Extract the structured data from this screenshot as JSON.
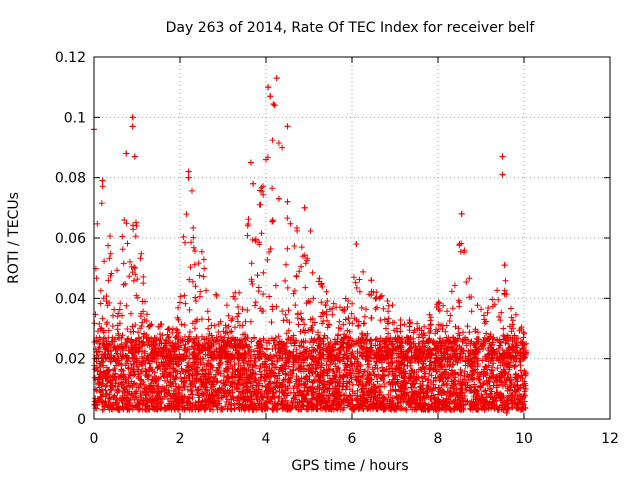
{
  "chart_data": {
    "type": "scatter",
    "title": "Day 263 of 2014, Rate Of TEC Index for receiver belf",
    "xlabel": "GPS time / hours",
    "ylabel": "ROTI / TECUs",
    "xlim": [
      0,
      12
    ],
    "ylim": [
      0,
      0.12
    ],
    "xticks": [
      0,
      2,
      4,
      6,
      8,
      10,
      12
    ],
    "yticks": [
      0,
      0.02,
      0.04,
      0.06,
      0.08,
      0.1,
      0.12
    ],
    "xtick_labels": [
      "0",
      "2",
      "4",
      "6",
      "8",
      "10",
      "12"
    ],
    "ytick_labels": [
      "0",
      "0.02",
      "0.04",
      "0.06",
      "0.08",
      "0.1",
      "0.12"
    ],
    "grid": true,
    "marker": "plus",
    "color": "#ee0000",
    "series": [
      {
        "name": "ROTI",
        "x_range": [
          0,
          10.05
        ],
        "notable_points": [
          {
            "x": 0.0,
            "y": 0.096
          },
          {
            "x": 0.9,
            "y": 0.1
          },
          {
            "x": 0.9,
            "y": 0.097
          },
          {
            "x": 0.75,
            "y": 0.088
          },
          {
            "x": 0.95,
            "y": 0.087
          },
          {
            "x": 0.2,
            "y": 0.079
          },
          {
            "x": 2.2,
            "y": 0.082
          },
          {
            "x": 2.2,
            "y": 0.08
          },
          {
            "x": 3.65,
            "y": 0.085
          },
          {
            "x": 3.7,
            "y": 0.078
          },
          {
            "x": 4.05,
            "y": 0.11
          },
          {
            "x": 4.1,
            "y": 0.107
          },
          {
            "x": 4.25,
            "y": 0.113
          },
          {
            "x": 4.2,
            "y": 0.104
          },
          {
            "x": 4.5,
            "y": 0.097
          },
          {
            "x": 4.0,
            "y": 0.086
          },
          {
            "x": 4.3,
            "y": 0.073
          },
          {
            "x": 4.5,
            "y": 0.072
          },
          {
            "x": 4.9,
            "y": 0.07
          },
          {
            "x": 6.1,
            "y": 0.058
          },
          {
            "x": 6.45,
            "y": 0.046
          },
          {
            "x": 8.55,
            "y": 0.068
          },
          {
            "x": 8.5,
            "y": 0.058
          },
          {
            "x": 9.5,
            "y": 0.087
          },
          {
            "x": 9.5,
            "y": 0.081
          },
          {
            "x": 9.55,
            "y": 0.051
          },
          {
            "x": 9.6,
            "y": 0.002
          }
        ],
        "envelope": [
          {
            "x": 0.0,
            "y": 0.06
          },
          {
            "x": 0.2,
            "y": 0.08
          },
          {
            "x": 0.4,
            "y": 0.06
          },
          {
            "x": 0.6,
            "y": 0.05
          },
          {
            "x": 0.8,
            "y": 0.088
          },
          {
            "x": 0.95,
            "y": 0.088
          },
          {
            "x": 1.1,
            "y": 0.055
          },
          {
            "x": 1.3,
            "y": 0.032
          },
          {
            "x": 1.6,
            "y": 0.032
          },
          {
            "x": 1.9,
            "y": 0.03
          },
          {
            "x": 2.2,
            "y": 0.082
          },
          {
            "x": 2.4,
            "y": 0.066
          },
          {
            "x": 2.6,
            "y": 0.05
          },
          {
            "x": 3.0,
            "y": 0.036
          },
          {
            "x": 3.4,
            "y": 0.045
          },
          {
            "x": 3.65,
            "y": 0.085
          },
          {
            "x": 3.8,
            "y": 0.07
          },
          {
            "x": 4.05,
            "y": 0.108
          },
          {
            "x": 4.25,
            "y": 0.113
          },
          {
            "x": 4.5,
            "y": 0.072
          },
          {
            "x": 4.8,
            "y": 0.07
          },
          {
            "x": 5.0,
            "y": 0.065
          },
          {
            "x": 5.3,
            "y": 0.045
          },
          {
            "x": 5.6,
            "y": 0.04
          },
          {
            "x": 5.9,
            "y": 0.04
          },
          {
            "x": 6.1,
            "y": 0.058
          },
          {
            "x": 6.3,
            "y": 0.047
          },
          {
            "x": 6.5,
            "y": 0.045
          },
          {
            "x": 6.8,
            "y": 0.04
          },
          {
            "x": 7.2,
            "y": 0.034
          },
          {
            "x": 7.6,
            "y": 0.032
          },
          {
            "x": 8.0,
            "y": 0.04
          },
          {
            "x": 8.3,
            "y": 0.04
          },
          {
            "x": 8.55,
            "y": 0.068
          },
          {
            "x": 8.8,
            "y": 0.04
          },
          {
            "x": 9.1,
            "y": 0.04
          },
          {
            "x": 9.3,
            "y": 0.04
          },
          {
            "x": 9.5,
            "y": 0.052
          },
          {
            "x": 9.7,
            "y": 0.038
          },
          {
            "x": 10.0,
            "y": 0.03
          },
          {
            "x": 10.05,
            "y": 0.025
          }
        ]
      }
    ]
  }
}
